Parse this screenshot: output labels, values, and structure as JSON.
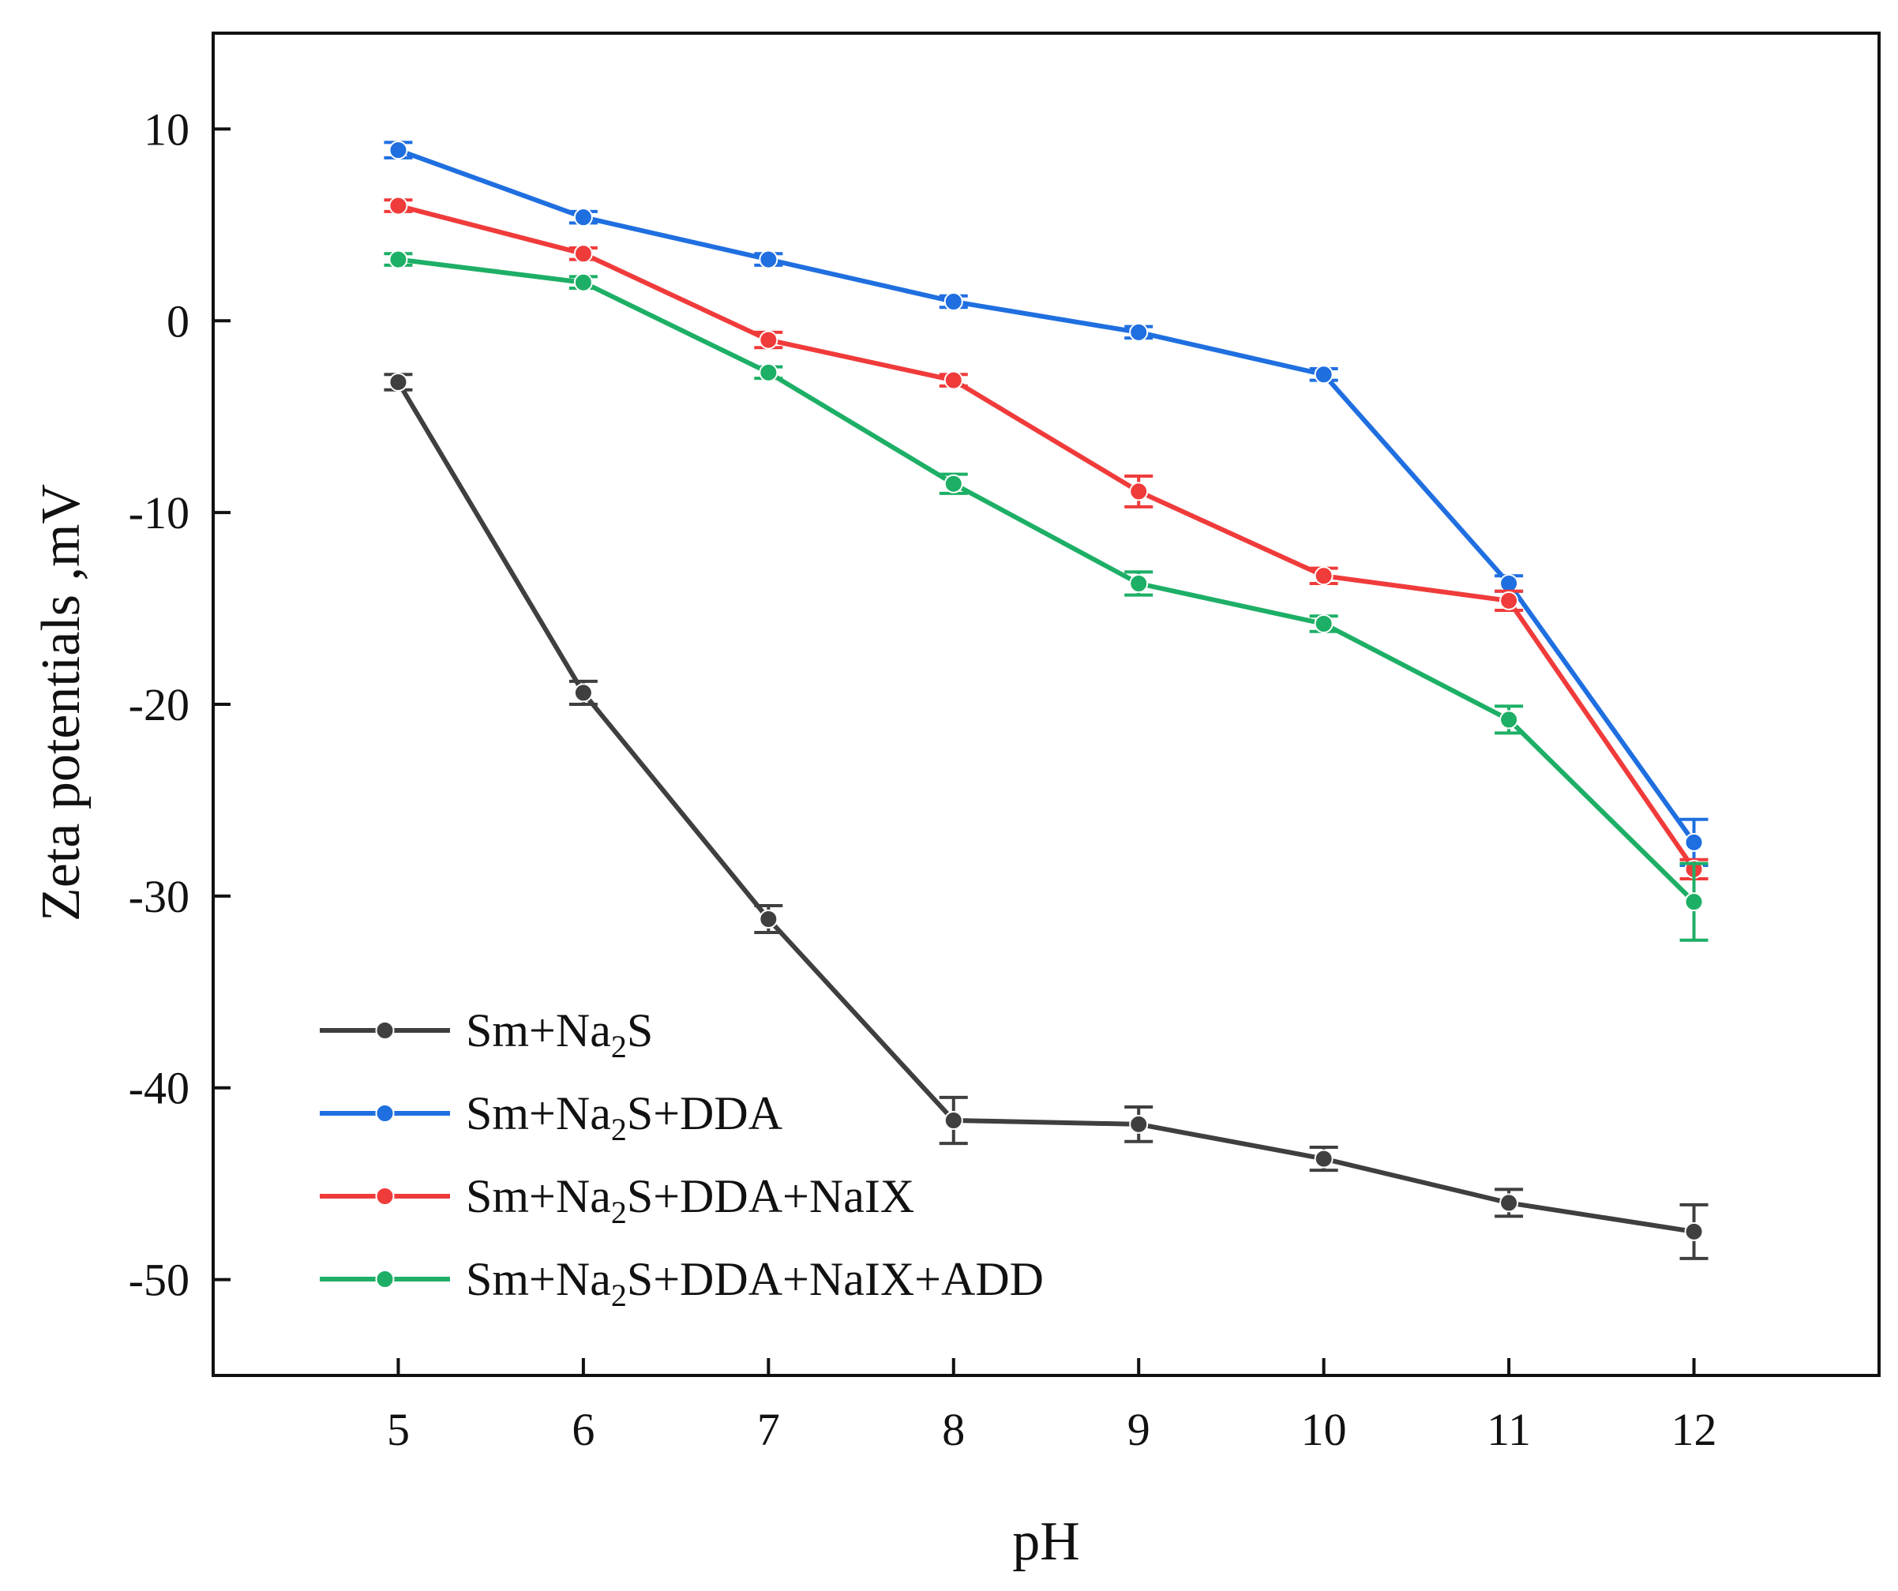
{
  "chart_data": {
    "type": "line",
    "title": "",
    "xlabel": "pH",
    "ylabel": "Zeta potentials ,mV",
    "x": [
      5,
      6,
      7,
      8,
      9,
      10,
      11,
      12
    ],
    "xticks": [
      "5",
      "6",
      "7",
      "8",
      "9",
      "10",
      "11",
      "12"
    ],
    "yticks": [
      "10",
      "0",
      "-10",
      "-20",
      "-30",
      "-40",
      "-50"
    ],
    "xlim": [
      4,
      13
    ],
    "ylim": [
      -55,
      15
    ],
    "grid": false,
    "legend_position": "bottom-left",
    "series": [
      {
        "name": "Sm+Na2S",
        "legend_parts": {
          "prefix": "Sm+Na",
          "subscript": "2",
          "suffix": "S"
        },
        "color": "#3f3f3f",
        "values": [
          -3.2,
          -19.4,
          -31.2,
          -41.7,
          -41.9,
          -43.7,
          -46.0,
          -47.5
        ],
        "errors": [
          0.4,
          0.6,
          0.7,
          1.2,
          0.9,
          0.6,
          0.7,
          1.4
        ]
      },
      {
        "name": "Sm+Na2S+DDA",
        "legend_parts": {
          "prefix": "Sm+Na",
          "subscript": "2",
          "suffix": "S+DDA"
        },
        "color": "#1f6fe0",
        "values": [
          8.9,
          5.4,
          3.2,
          1.0,
          -0.6,
          -2.8,
          -13.7,
          -27.2
        ],
        "errors": [
          0.4,
          0.3,
          0.3,
          0.3,
          0.3,
          0.3,
          0.4,
          1.2
        ]
      },
      {
        "name": "Sm+Na2S+DDA+NaIX",
        "legend_parts": {
          "prefix": "Sm+Na",
          "subscript": "2",
          "suffix": "S+DDA+NaIX"
        },
        "color": "#f03b3b",
        "values": [
          6.0,
          3.5,
          -1.0,
          -3.1,
          -8.9,
          -13.3,
          -14.6,
          -28.6
        ],
        "errors": [
          0.3,
          0.3,
          0.4,
          0.3,
          0.8,
          0.4,
          0.5,
          0.5
        ]
      },
      {
        "name": "Sm+Na2S+DDA+NaIX+ADD",
        "legend_parts": {
          "prefix": "Sm+Na",
          "subscript": "2",
          "suffix": "S+DDA+NaIX+ADD"
        },
        "color": "#1daf66",
        "values": [
          3.2,
          2.0,
          -2.7,
          -8.5,
          -13.7,
          -15.8,
          -20.8,
          -30.3
        ],
        "errors": [
          0.3,
          0.3,
          0.3,
          0.5,
          0.6,
          0.4,
          0.7,
          2.0
        ]
      }
    ]
  }
}
